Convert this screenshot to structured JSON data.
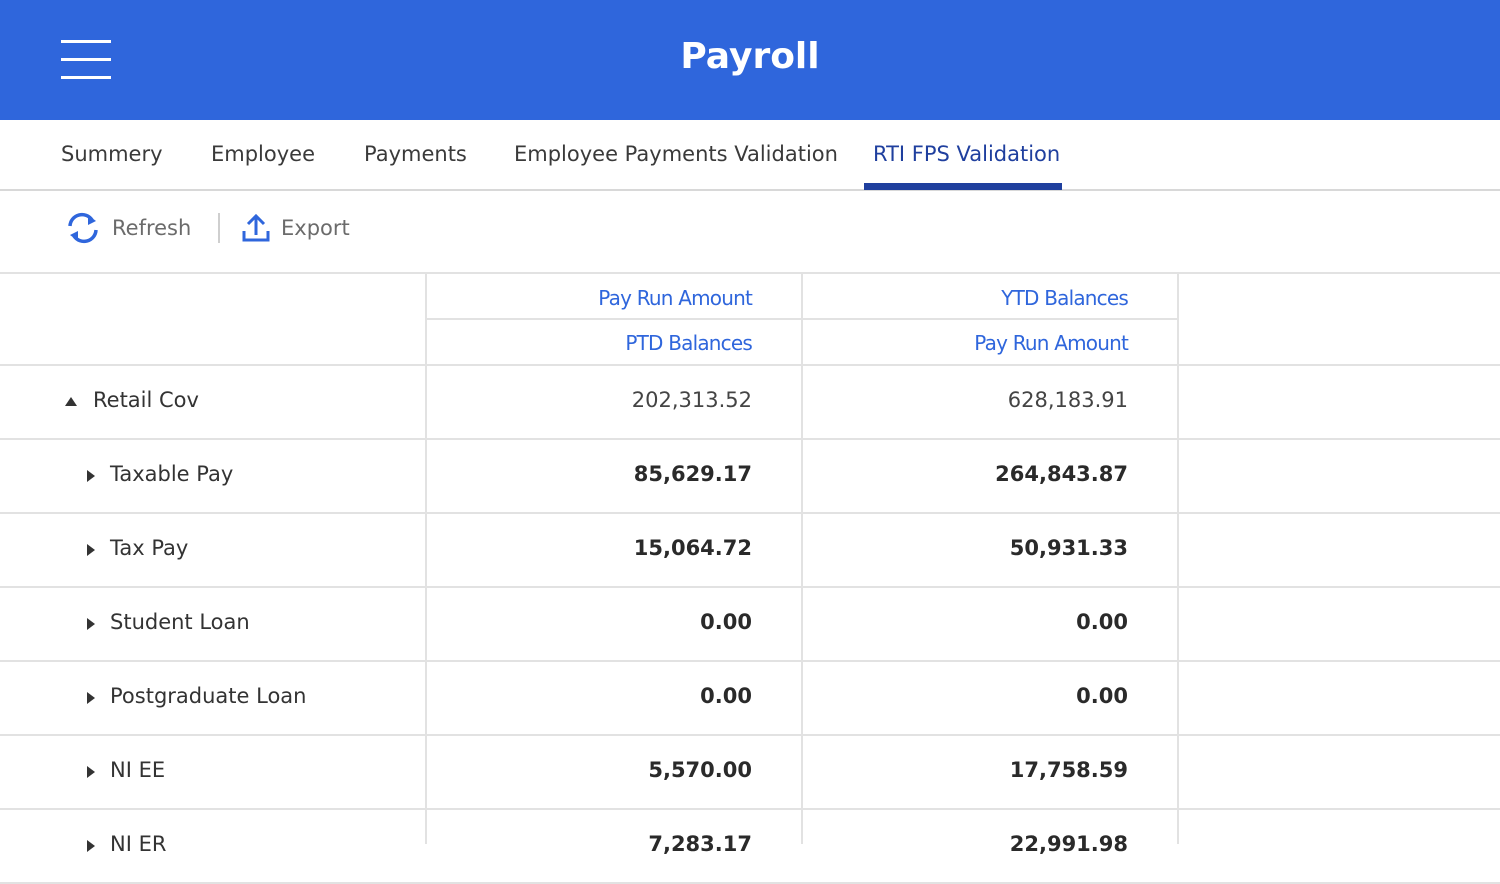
{
  "header": {
    "title": "Payroll"
  },
  "tabs": {
    "items": [
      "Summery",
      "Employee",
      "Payments",
      "Employee Payments Validation",
      "RTI FPS Validation"
    ],
    "active": 4
  },
  "toolbar": {
    "refresh": "Refresh",
    "export": "Export"
  },
  "table": {
    "header_rows": [
      [
        "Pay Run Amount",
        "YTD Balances"
      ],
      [
        "PTD Balances",
        "Pay Run Amount"
      ]
    ],
    "group": {
      "label": "Retail Cov",
      "values": [
        "202,313.52",
        "628,183.91"
      ],
      "children": [
        {
          "label": "Taxable Pay",
          "values": [
            "85,629.17",
            "264,843.87"
          ]
        },
        {
          "label": "Tax Pay",
          "values": [
            "15,064.72",
            "50,931.33"
          ]
        },
        {
          "label": "Student Loan",
          "values": [
            "0.00",
            "0.00"
          ]
        },
        {
          "label": "Postgraduate Loan",
          "values": [
            "0.00",
            "0.00"
          ]
        },
        {
          "label": "NI EE",
          "values": [
            "5,570.00",
            "17,758.59"
          ]
        },
        {
          "label": "NI ER",
          "values": [
            "7,283.17",
            "22,991.98"
          ]
        }
      ]
    }
  }
}
